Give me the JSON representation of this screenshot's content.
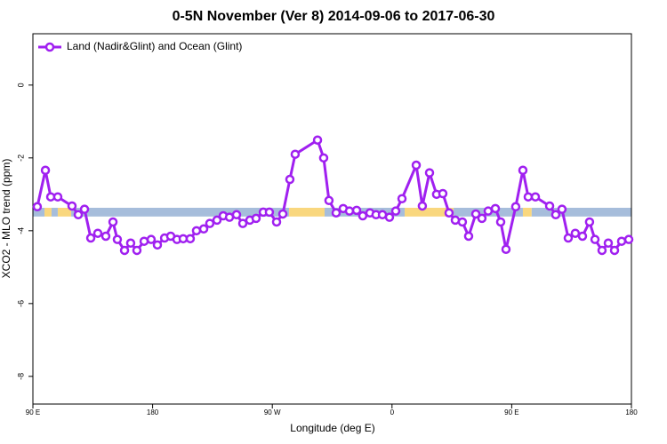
{
  "chart_data": {
    "type": "line",
    "title": "0-5N November (Ver 8)   2014-09-06 to 2017-06-30",
    "xlabel": "Longitude (deg E)",
    "ylabel": "XCO2 - MLO trend (ppm)",
    "xlim": [
      90,
      540
    ],
    "ylim": [
      -8.76,
      1.41
    ],
    "xticks": [
      {
        "value": 90,
        "label": "90 E"
      },
      {
        "value": 180,
        "label": "180"
      },
      {
        "value": 270,
        "label": "90 W"
      },
      {
        "value": 360,
        "label": "0"
      },
      {
        "value": 450,
        "label": "90 E"
      },
      {
        "value": 540,
        "label": "180"
      }
    ],
    "yticks": [
      0,
      -2,
      -4,
      -6,
      -8
    ],
    "legend": "top-left",
    "band": {
      "ylim": [
        -3.37,
        -3.61
      ],
      "segments": [
        {
          "x": [
            90,
            98.7
          ],
          "color": "#a6bddb"
        },
        {
          "x": [
            98.7,
            104
          ],
          "color": "#f9d77e"
        },
        {
          "x": [
            104,
            108.7
          ],
          "color": "#a6bddb"
        },
        {
          "x": [
            108.7,
            118.8
          ],
          "color": "#f9d77e"
        },
        {
          "x": [
            118.8,
            282.6
          ],
          "color": "#a6bddb"
        },
        {
          "x": [
            282.6,
            309.3
          ],
          "color": "#f9d77e"
        },
        {
          "x": [
            309.3,
            369.5
          ],
          "color": "#a6bddb"
        },
        {
          "x": [
            369.5,
            406.3
          ],
          "color": "#f9d77e"
        },
        {
          "x": [
            406.3,
            458.4
          ],
          "color": "#a6bddb"
        },
        {
          "x": [
            458.4,
            465
          ],
          "color": "#f9d77e"
        },
        {
          "x": [
            465,
            540
          ],
          "color": "#a6bddb"
        }
      ]
    },
    "series": [
      {
        "name": "Land (Nadir&Glint) and Ocean (Glint)",
        "color": "#a020f0",
        "x": [
          93.3,
          99.4,
          103.4,
          108.7,
          119.4,
          124.1,
          128.8,
          133.5,
          138.8,
          144.8,
          150.2,
          153.5,
          158.9,
          163.5,
          168.2,
          173.6,
          178.9,
          183.6,
          189,
          193.6,
          198.3,
          203,
          208.3,
          213,
          218.4,
          223,
          228.4,
          233.1,
          237.8,
          243.1,
          247.8,
          253.1,
          257.8,
          263.2,
          267.8,
          273.2,
          277.9,
          283.2,
          287.2,
          304,
          308.6,
          312.6,
          318,
          323.3,
          328,
          333.4,
          338,
          343.4,
          348,
          352.8,
          358.1,
          362.8,
          367.5,
          378.2,
          382.8,
          388.2,
          393.5,
          398.2,
          402.9,
          407.6,
          412.9,
          417.6,
          423,
          427.6,
          432.3,
          437.7,
          441.7,
          445.7,
          453,
          458.4,
          462.4,
          467.8,
          478.5,
          483.1,
          487.8,
          492.5,
          497.8,
          503.2,
          508.5,
          512.6,
          517.9,
          522.6,
          527.3,
          532.6,
          538
        ],
        "values": [
          -3.34,
          -2.34,
          -3.07,
          -3.07,
          -3.32,
          -3.56,
          -3.41,
          -4.2,
          -4.07,
          -4.15,
          -3.76,
          -4.24,
          -4.54,
          -4.34,
          -4.54,
          -4.29,
          -4.24,
          -4.39,
          -4.2,
          -4.15,
          -4.24,
          -4.22,
          -4.22,
          -4.0,
          -3.95,
          -3.8,
          -3.71,
          -3.59,
          -3.63,
          -3.56,
          -3.8,
          -3.71,
          -3.66,
          -3.49,
          -3.49,
          -3.76,
          -3.54,
          -2.59,
          -1.9,
          -1.51,
          -2.0,
          -3.17,
          -3.51,
          -3.39,
          -3.46,
          -3.44,
          -3.59,
          -3.51,
          -3.56,
          -3.56,
          -3.63,
          -3.46,
          -3.12,
          -2.2,
          -3.32,
          -2.41,
          -3.0,
          -2.98,
          -3.51,
          -3.71,
          -3.76,
          -4.15,
          -3.54,
          -3.66,
          -3.46,
          -3.39,
          -3.76,
          -4.51,
          -3.34,
          -2.34,
          -3.07,
          -3.07,
          -3.32,
          -3.56,
          -3.41,
          -4.2,
          -4.07,
          -4.15,
          -3.76,
          -4.24,
          -4.54,
          -4.34,
          -4.54,
          -4.29,
          -4.24
        ]
      }
    ]
  }
}
